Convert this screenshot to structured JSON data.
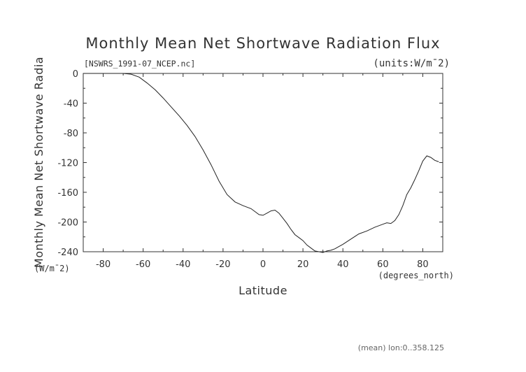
{
  "chart_data": {
    "type": "line",
    "title": "Monthly Mean Net Shortwave Radiation Flux",
    "subtitle": "[NSWRS_1991-07_NCEP.nc]",
    "units_label": "(units:W/m¯2)",
    "xlabel": "Latitude",
    "x_units": "(degrees_north)",
    "ylabel": "Monthly Mean Net Shortwave Radia",
    "y_units": "(W/m¯2)",
    "footer": "(mean) lon:0..358.125",
    "xlim": [
      -90,
      90
    ],
    "ylim": [
      -240,
      0
    ],
    "x_ticks": [
      "-80",
      "-60",
      "-40",
      "-20",
      "0",
      "20",
      "40",
      "60",
      "80"
    ],
    "y_ticks": [
      "0",
      "-40",
      "-80",
      "-120",
      "-160",
      "-200",
      "-240"
    ],
    "grid": false,
    "series": [
      {
        "x": [
          -90,
          -80,
          -70,
          -66,
          -62,
          -58,
          -54,
          -50,
          -46,
          -42,
          -38,
          -34,
          -30,
          -26,
          -22,
          -18,
          -14,
          -10,
          -6,
          -4,
          -2,
          0,
          2,
          4,
          6,
          8,
          10,
          12,
          14,
          16,
          18,
          20,
          22,
          24,
          26,
          28,
          30,
          32,
          34,
          36,
          38,
          40,
          44,
          48,
          52,
          56,
          60,
          62,
          64,
          66,
          68,
          70,
          72,
          74,
          76,
          78,
          80,
          82,
          84,
          86,
          88
        ],
        "y": [
          0,
          0,
          0,
          -1,
          -5,
          -13,
          -22,
          -33,
          -45,
          -57,
          -70,
          -85,
          -103,
          -123,
          -145,
          -163,
          -173,
          -178,
          -182,
          -186,
          -190,
          -191,
          -188,
          -185,
          -184,
          -188,
          -195,
          -202,
          -210,
          -217,
          -221,
          -225,
          -231,
          -235,
          -239,
          -240,
          -241,
          -239,
          -238,
          -236,
          -233,
          -230,
          -223,
          -216,
          -212,
          -207,
          -203,
          -201,
          -202,
          -198,
          -190,
          -178,
          -163,
          -154,
          -143,
          -131,
          -118,
          -111,
          -113,
          -117,
          -119
        ]
      }
    ]
  }
}
